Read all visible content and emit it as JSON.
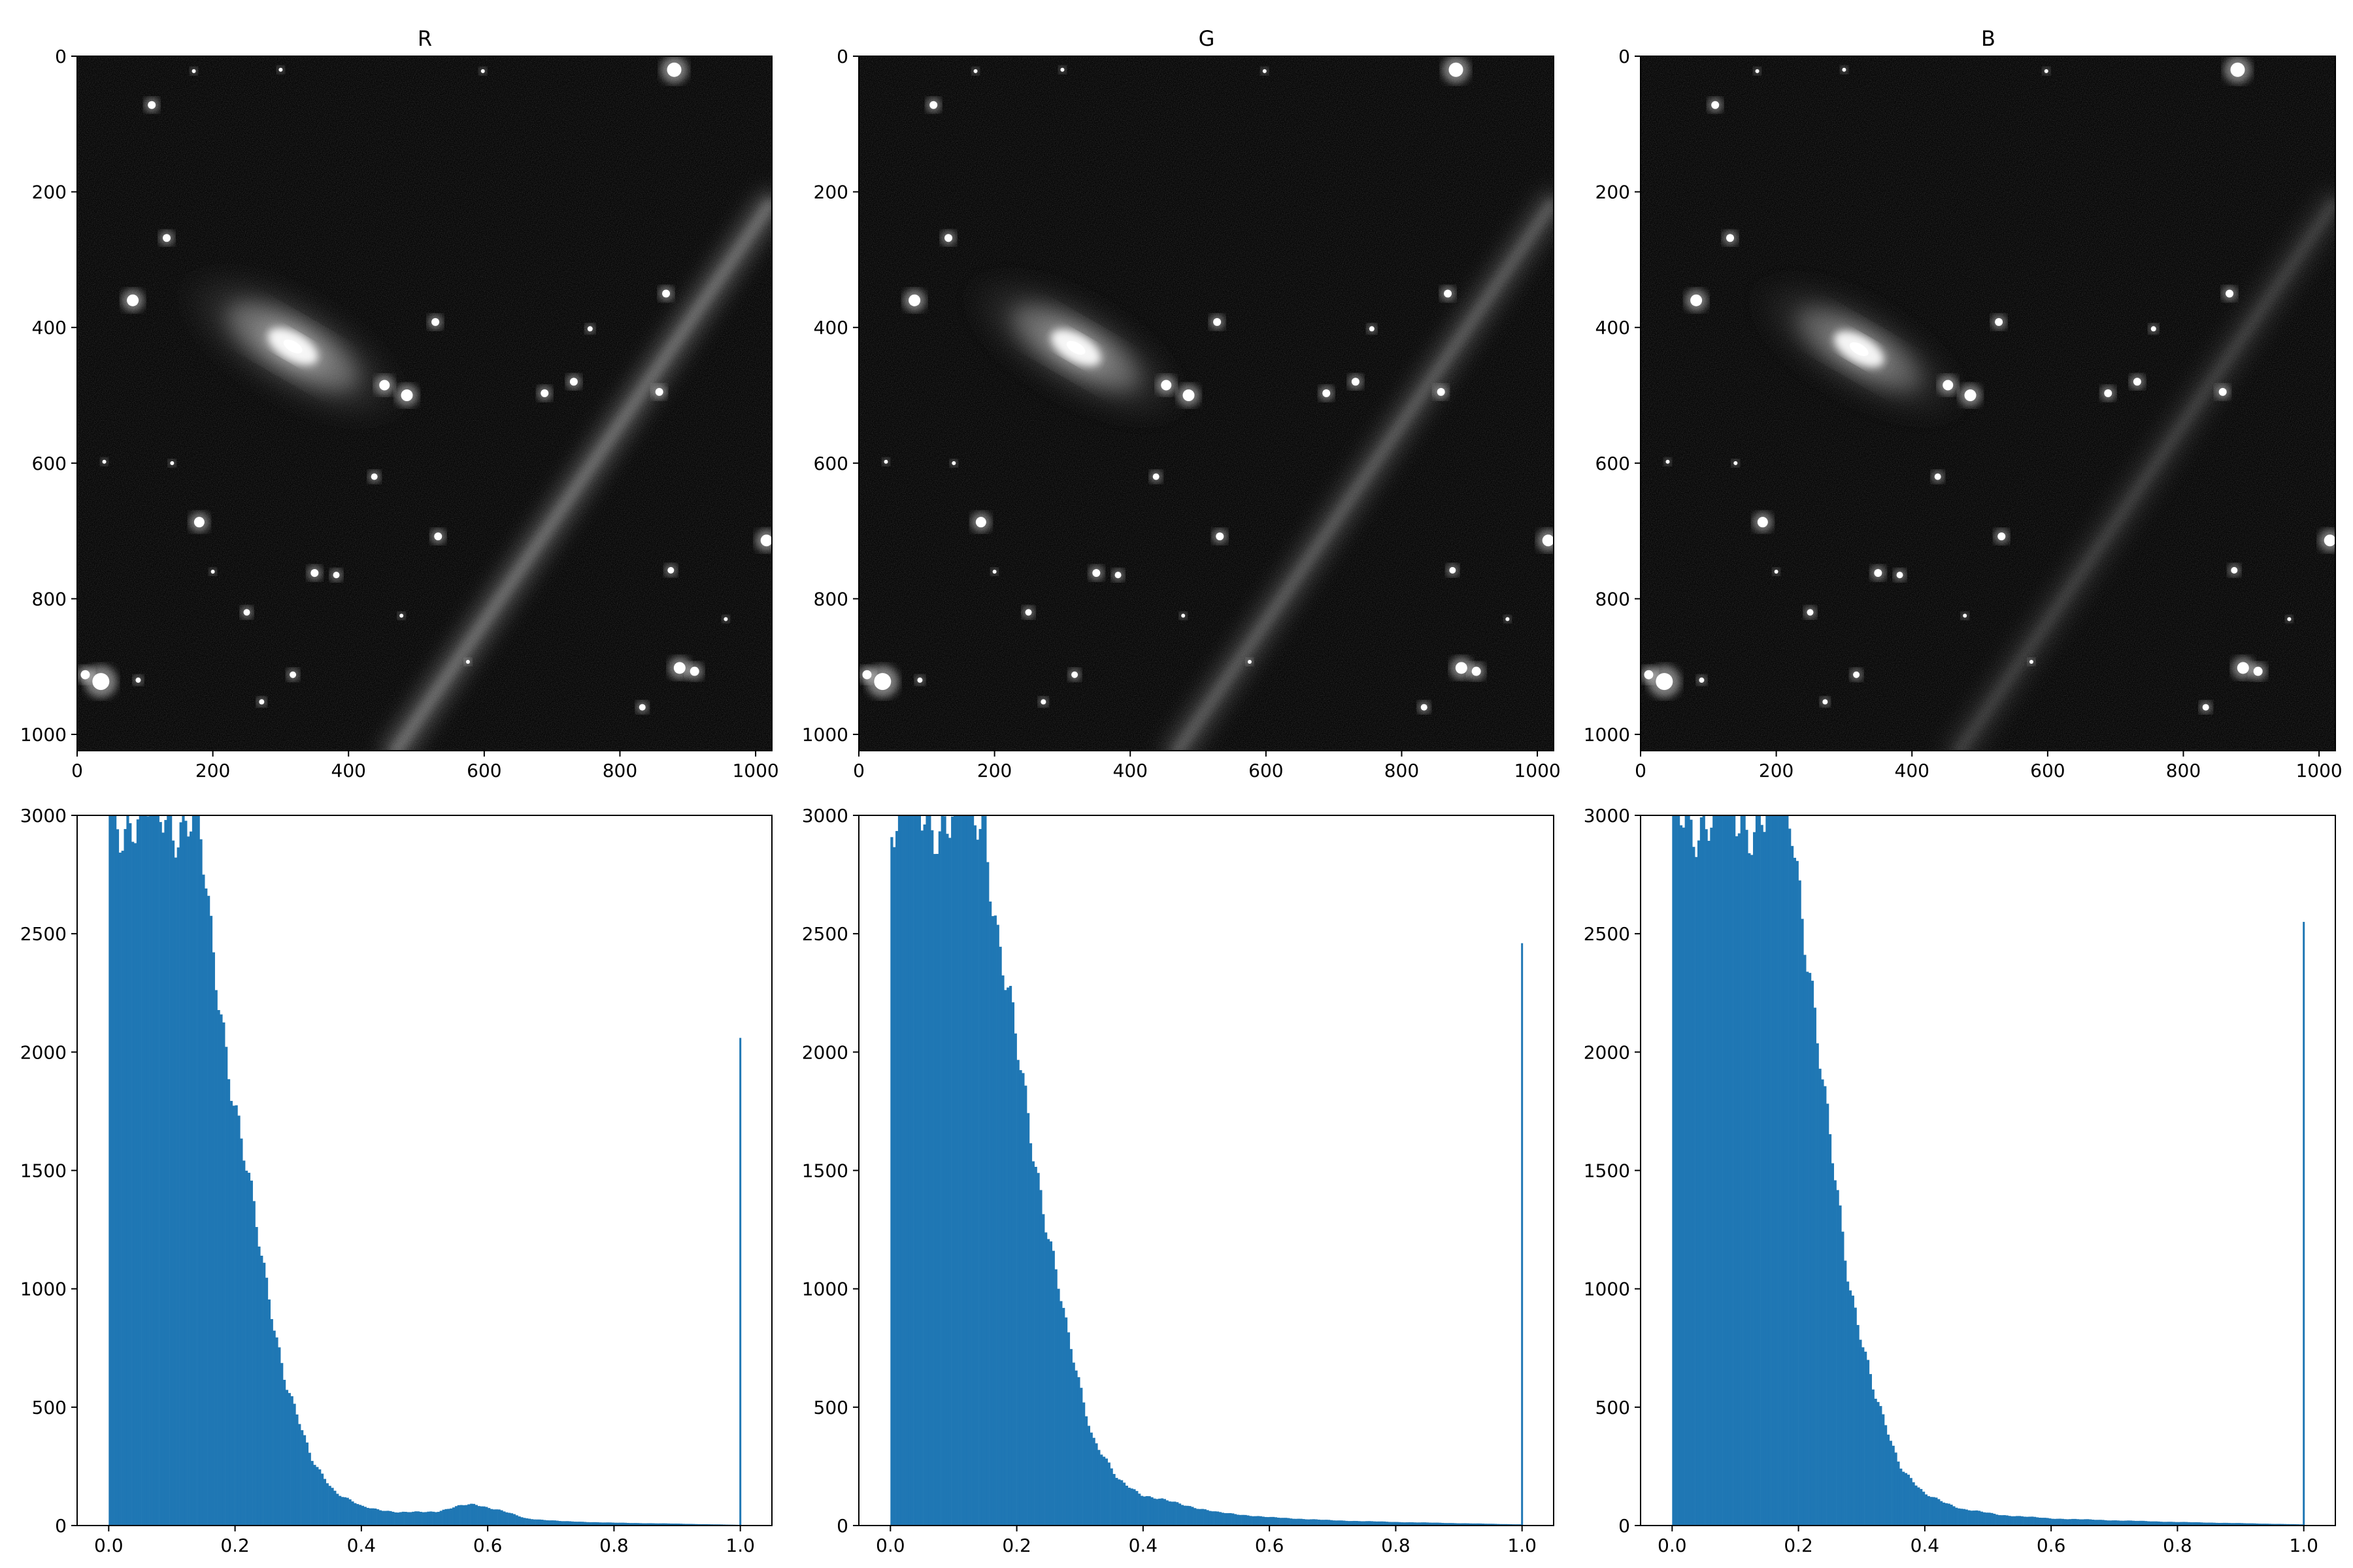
{
  "chart_data": [
    {
      "type": "image",
      "title": "R",
      "xlim": [
        0,
        1024
      ],
      "ylim": [
        1024,
        0
      ],
      "xticks": [
        "0",
        "200",
        "400",
        "600",
        "800",
        "1000"
      ],
      "yticks": [
        "0",
        "200",
        "400",
        "600",
        "800",
        "1000"
      ],
      "galaxy": {
        "x": 318,
        "y": 428,
        "angle_deg": 30,
        "rx": 195,
        "ry": 82,
        "brightness": 1.0
      },
      "streak": {
        "x0": 1020,
        "y0": 220,
        "x1": 470,
        "y1": 1024,
        "brightness": 0.42
      },
      "stars": [
        [
          880,
          20,
          11
        ],
        [
          110,
          72,
          6
        ],
        [
          300,
          20,
          3
        ],
        [
          172,
          22,
          3
        ],
        [
          598,
          22,
          3
        ],
        [
          82,
          360,
          9
        ],
        [
          132,
          268,
          6
        ],
        [
          528,
          392,
          6
        ],
        [
          868,
          350,
          6
        ],
        [
          756,
          402,
          4
        ],
        [
          453,
          485,
          8
        ],
        [
          486,
          500,
          9
        ],
        [
          689,
          497,
          6
        ],
        [
          732,
          480,
          6
        ],
        [
          858,
          495,
          6
        ],
        [
          438,
          620,
          5
        ],
        [
          40,
          598,
          3
        ],
        [
          180,
          687,
          8
        ],
        [
          532,
          708,
          6
        ],
        [
          1016,
          714,
          9
        ],
        [
          350,
          762,
          6
        ],
        [
          382,
          765,
          5
        ],
        [
          875,
          758,
          5
        ],
        [
          250,
          820,
          5
        ],
        [
          478,
          825,
          3
        ],
        [
          956,
          830,
          3
        ],
        [
          888,
          902,
          9
        ],
        [
          910,
          907,
          7
        ],
        [
          35,
          922,
          13
        ],
        [
          12,
          912,
          7
        ],
        [
          90,
          920,
          4
        ],
        [
          318,
          912,
          5
        ],
        [
          272,
          952,
          4
        ],
        [
          833,
          960,
          5
        ],
        [
          576,
          893,
          3
        ],
        [
          200,
          760,
          3
        ],
        [
          140,
          600,
          3
        ]
      ]
    },
    {
      "type": "image",
      "title": "G",
      "xlim": [
        0,
        1024
      ],
      "ylim": [
        1024,
        0
      ],
      "xticks": [
        "0",
        "200",
        "400",
        "600",
        "800",
        "1000"
      ],
      "yticks": [
        "0",
        "200",
        "400",
        "600",
        "800",
        "1000"
      ],
      "galaxy": {
        "x": 320,
        "y": 430,
        "angle_deg": 30,
        "rx": 190,
        "ry": 78,
        "brightness": 0.95
      },
      "streak": {
        "x0": 1020,
        "y0": 220,
        "x1": 470,
        "y1": 1024,
        "brightness": 0.32
      },
      "stars": [
        [
          880,
          20,
          11
        ],
        [
          110,
          72,
          6
        ],
        [
          300,
          20,
          3
        ],
        [
          172,
          22,
          3
        ],
        [
          598,
          22,
          3
        ],
        [
          82,
          360,
          9
        ],
        [
          132,
          268,
          6
        ],
        [
          528,
          392,
          6
        ],
        [
          868,
          350,
          6
        ],
        [
          756,
          402,
          4
        ],
        [
          453,
          485,
          8
        ],
        [
          486,
          500,
          9
        ],
        [
          689,
          497,
          6
        ],
        [
          732,
          480,
          6
        ],
        [
          858,
          495,
          6
        ],
        [
          438,
          620,
          5
        ],
        [
          40,
          598,
          3
        ],
        [
          180,
          687,
          8
        ],
        [
          532,
          708,
          6
        ],
        [
          1016,
          714,
          9
        ],
        [
          350,
          762,
          6
        ],
        [
          382,
          765,
          5
        ],
        [
          875,
          758,
          5
        ],
        [
          250,
          820,
          5
        ],
        [
          478,
          825,
          3
        ],
        [
          956,
          830,
          3
        ],
        [
          888,
          902,
          9
        ],
        [
          910,
          907,
          7
        ],
        [
          35,
          922,
          13
        ],
        [
          12,
          912,
          7
        ],
        [
          90,
          920,
          4
        ],
        [
          318,
          912,
          5
        ],
        [
          272,
          952,
          4
        ],
        [
          833,
          960,
          5
        ],
        [
          576,
          893,
          3
        ],
        [
          200,
          760,
          3
        ],
        [
          140,
          600,
          3
        ]
      ]
    },
    {
      "type": "image",
      "title": "B",
      "xlim": [
        0,
        1024
      ],
      "ylim": [
        1024,
        0
      ],
      "xticks": [
        "0",
        "200",
        "400",
        "600",
        "800",
        "1000"
      ],
      "yticks": [
        "0",
        "200",
        "400",
        "600",
        "800",
        "1000"
      ],
      "galaxy": {
        "x": 322,
        "y": 432,
        "angle_deg": 30,
        "rx": 185,
        "ry": 75,
        "brightness": 0.85
      },
      "streak": {
        "x0": 1020,
        "y0": 220,
        "x1": 470,
        "y1": 1024,
        "brightness": 0.2
      },
      "stars": [
        [
          880,
          20,
          11
        ],
        [
          110,
          72,
          6
        ],
        [
          300,
          20,
          3
        ],
        [
          172,
          22,
          3
        ],
        [
          598,
          22,
          3
        ],
        [
          82,
          360,
          9
        ],
        [
          132,
          268,
          6
        ],
        [
          528,
          392,
          6
        ],
        [
          868,
          350,
          6
        ],
        [
          756,
          402,
          4
        ],
        [
          453,
          485,
          8
        ],
        [
          486,
          500,
          9
        ],
        [
          689,
          497,
          6
        ],
        [
          732,
          480,
          6
        ],
        [
          858,
          495,
          6
        ],
        [
          438,
          620,
          5
        ],
        [
          40,
          598,
          3
        ],
        [
          180,
          687,
          8
        ],
        [
          532,
          708,
          6
        ],
        [
          1016,
          714,
          9
        ],
        [
          350,
          762,
          6
        ],
        [
          382,
          765,
          5
        ],
        [
          875,
          758,
          5
        ],
        [
          250,
          820,
          5
        ],
        [
          478,
          825,
          3
        ],
        [
          956,
          830,
          3
        ],
        [
          888,
          902,
          9
        ],
        [
          910,
          907,
          7
        ],
        [
          35,
          922,
          13
        ],
        [
          12,
          912,
          7
        ],
        [
          90,
          920,
          4
        ],
        [
          318,
          912,
          5
        ],
        [
          272,
          952,
          4
        ],
        [
          833,
          960,
          5
        ],
        [
          576,
          893,
          3
        ],
        [
          200,
          760,
          3
        ],
        [
          140,
          600,
          3
        ]
      ]
    },
    {
      "type": "bar",
      "title": "",
      "xlim": [
        -0.05,
        1.05
      ],
      "ylim": [
        0,
        3000
      ],
      "xticks": [
        "0.0",
        "0.2",
        "0.4",
        "0.6",
        "0.8",
        "1.0"
      ],
      "yticks": [
        "0",
        "500",
        "1000",
        "1500",
        "2000",
        "2500",
        "3000"
      ],
      "color": "#1f77b4",
      "bin_start": 0.0,
      "bin_width": 0.004,
      "profile": [
        [
          0.0,
          3000
        ],
        [
          0.14,
          3000
        ],
        [
          0.16,
          2500
        ],
        [
          0.2,
          1800
        ],
        [
          0.24,
          1150
        ],
        [
          0.28,
          620
        ],
        [
          0.32,
          280
        ],
        [
          0.36,
          140
        ],
        [
          0.4,
          80
        ],
        [
          0.46,
          55
        ],
        [
          0.52,
          60
        ],
        [
          0.56,
          85
        ],
        [
          0.58,
          90
        ],
        [
          0.62,
          65
        ],
        [
          0.66,
          30
        ],
        [
          0.72,
          18
        ],
        [
          0.8,
          12
        ],
        [
          0.9,
          8
        ],
        [
          0.996,
          3
        ]
      ],
      "spike": {
        "x": 1.0,
        "value": 2060
      }
    },
    {
      "type": "bar",
      "title": "",
      "xlim": [
        -0.05,
        1.05
      ],
      "ylim": [
        0,
        3000
      ],
      "xticks": [
        "0.0",
        "0.2",
        "0.4",
        "0.6",
        "0.8",
        "1.0"
      ],
      "yticks": [
        "0",
        "500",
        "1000",
        "1500",
        "2000",
        "2500",
        "3000"
      ],
      "color": "#1f77b4",
      "bin_start": 0.0,
      "bin_width": 0.004,
      "profile": [
        [
          0.0,
          3000
        ],
        [
          0.15,
          3000
        ],
        [
          0.17,
          2500
        ],
        [
          0.2,
          2000
        ],
        [
          0.24,
          1400
        ],
        [
          0.28,
          800
        ],
        [
          0.32,
          380
        ],
        [
          0.36,
          190
        ],
        [
          0.4,
          130
        ],
        [
          0.46,
          90
        ],
        [
          0.52,
          55
        ],
        [
          0.6,
          35
        ],
        [
          0.7,
          22
        ],
        [
          0.8,
          15
        ],
        [
          0.9,
          10
        ],
        [
          0.996,
          5
        ]
      ],
      "spike": {
        "x": 1.0,
        "value": 2460
      }
    },
    {
      "type": "bar",
      "title": "",
      "xlim": [
        -0.05,
        1.05
      ],
      "ylim": [
        0,
        3000
      ],
      "xticks": [
        "0.0",
        "0.2",
        "0.4",
        "0.6",
        "0.8",
        "1.0"
      ],
      "yticks": [
        "0",
        "500",
        "1000",
        "1500",
        "2000",
        "2500",
        "3000"
      ],
      "color": "#1f77b4",
      "bin_start": 0.0,
      "bin_width": 0.004,
      "profile": [
        [
          0.0,
          3000
        ],
        [
          0.19,
          3000
        ],
        [
          0.21,
          2550
        ],
        [
          0.24,
          1800
        ],
        [
          0.28,
          1050
        ],
        [
          0.32,
          550
        ],
        [
          0.36,
          260
        ],
        [
          0.4,
          130
        ],
        [
          0.46,
          70
        ],
        [
          0.52,
          45
        ],
        [
          0.6,
          30
        ],
        [
          0.7,
          22
        ],
        [
          0.8,
          15
        ],
        [
          0.9,
          10
        ],
        [
          0.996,
          5
        ]
      ],
      "spike": {
        "x": 1.0,
        "value": 2550
      }
    }
  ]
}
